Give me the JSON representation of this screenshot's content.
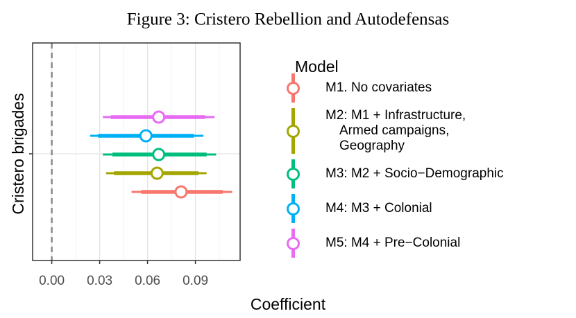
{
  "chart_data": {
    "type": "coefficient",
    "title": "Figure 3: Cristero Rebellion and Autodefensas",
    "xlabel": "Coefficient",
    "ylabel": "Cristero brigades",
    "legend_title": "Model",
    "xlim": [
      -0.012,
      0.118
    ],
    "xticks": [
      {
        "value": 0,
        "label": "0.00"
      },
      {
        "value": 0.03,
        "label": "0.03"
      },
      {
        "value": 0.06,
        "label": "0.06"
      },
      {
        "value": 0.09,
        "label": "0.09"
      }
    ],
    "vline": 0,
    "grid": true,
    "series": [
      {
        "name": "M1. No covariates",
        "color": "#f8766d",
        "estimate": 0.081,
        "ci95": [
          0.05,
          0.113
        ],
        "ci90": [
          0.056,
          0.107
        ]
      },
      {
        "name": "M2: M1 + Infrastructure,\nArmed campaigns,\nGeography",
        "color": "#a3a500",
        "estimate": 0.066,
        "ci95": [
          0.034,
          0.097
        ],
        "ci90": [
          0.039,
          0.092
        ]
      },
      {
        "name": "M3: M2 + Socio−Demographic",
        "color": "#00bf7d",
        "estimate": 0.067,
        "ci95": [
          0.032,
          0.103
        ],
        "ci90": [
          0.038,
          0.097
        ]
      },
      {
        "name": "M4: M3 + Colonial",
        "color": "#00b0f6",
        "estimate": 0.059,
        "ci95": [
          0.024,
          0.095
        ],
        "ci90": [
          0.029,
          0.089
        ]
      },
      {
        "name": "M5: M4 + Pre−Colonial",
        "color": "#e76bf3",
        "estimate": 0.067,
        "ci95": [
          0.032,
          0.102
        ],
        "ci90": [
          0.037,
          0.096
        ]
      }
    ]
  }
}
